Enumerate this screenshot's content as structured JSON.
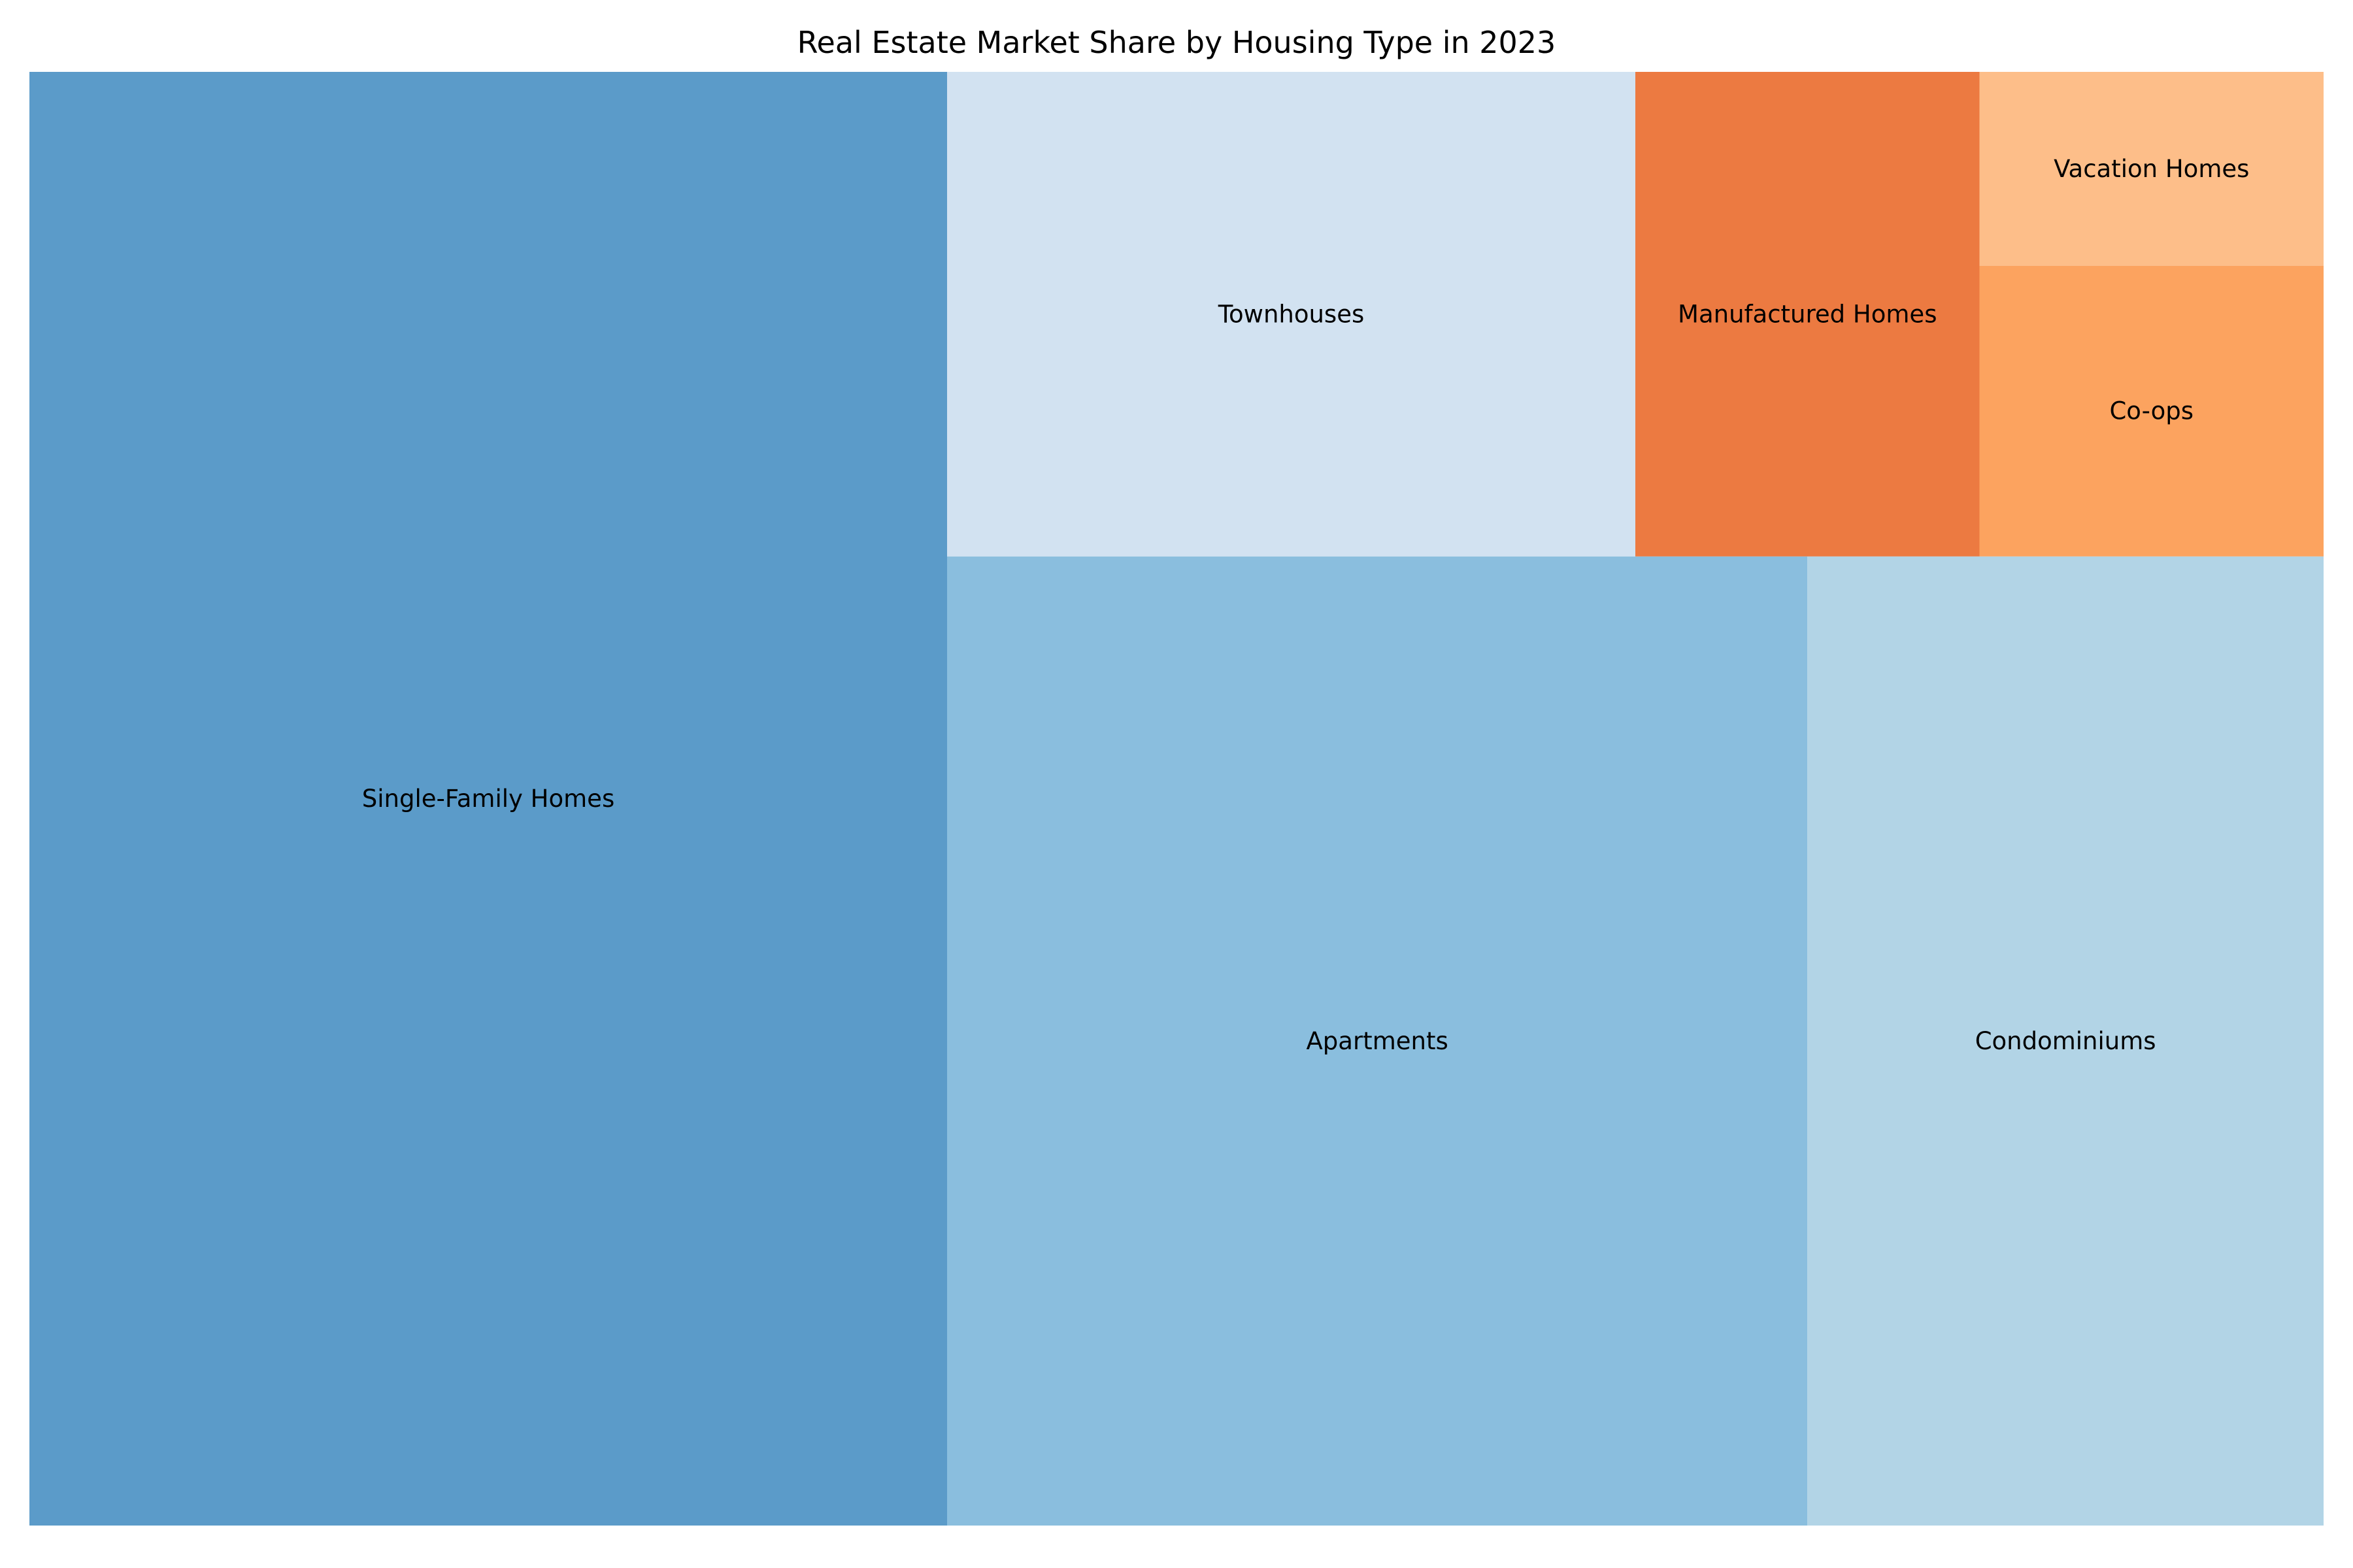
{
  "chart_data": {
    "type": "treemap",
    "title": "Real Estate Market Share by Housing Type in 2023",
    "items": [
      {
        "label": "Single-Family Homes",
        "value": 40,
        "color": "#5b9bc9"
      },
      {
        "label": "Apartments",
        "value": 25,
        "color": "#8abede"
      },
      {
        "label": "Condominiums",
        "value": 15,
        "color": "#b2d4e6"
      },
      {
        "label": "Townhouses",
        "value": 10,
        "color": "#d2e2f1"
      },
      {
        "label": "Manufactured Homes",
        "value": 5,
        "color": "#ec7a41"
      },
      {
        "label": "Co-ops",
        "value": 3,
        "color": "#fca35f"
      },
      {
        "label": "Vacation Homes",
        "value": 2,
        "color": "#fdbe89"
      }
    ]
  }
}
